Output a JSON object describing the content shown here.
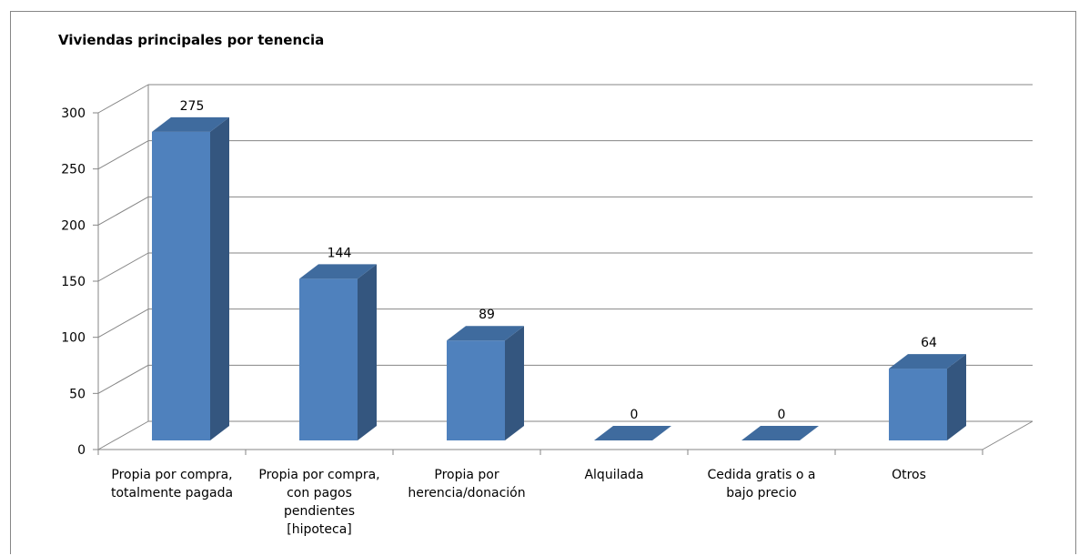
{
  "chart_data": {
    "type": "bar",
    "title": "Viviendas principales por tenencia",
    "categories": [
      [
        "Propia por compra,",
        "totalmente pagada"
      ],
      [
        "Propia por compra,",
        "con pagos",
        "pendientes",
        "[hipoteca]"
      ],
      [
        "Propia por",
        "herencia/donación"
      ],
      [
        "Alquilada"
      ],
      [
        "Cedida gratis o a",
        "bajo precio"
      ],
      [
        "Otros"
      ]
    ],
    "values": [
      275,
      144,
      89,
      0,
      0,
      64
    ],
    "yticks": [
      0,
      50,
      100,
      150,
      200,
      250,
      300
    ],
    "ylim": [
      0,
      300
    ],
    "grid": true,
    "legend": "none",
    "style": "3d-column",
    "colors": {
      "front": "#4f81bd",
      "side": "#34567f",
      "top": "#3f6b9e",
      "grid": "#868686"
    }
  }
}
